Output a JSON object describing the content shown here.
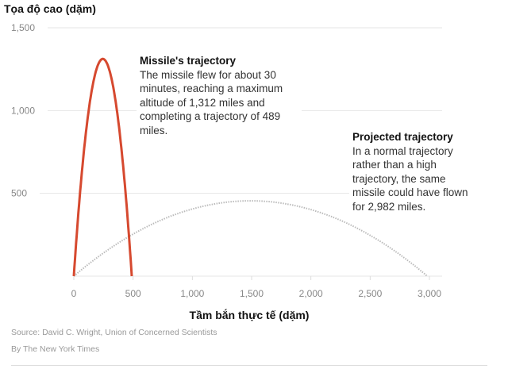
{
  "chart_data": {
    "type": "line",
    "ylabel": "Tọa độ cao (dặm)",
    "xlabel": "Tầm bắn thực tế (dặm)",
    "xlim": [
      0,
      3000
    ],
    "ylim": [
      0,
      1500
    ],
    "xticks": [
      0,
      500,
      1000,
      1500,
      2000,
      2500,
      3000
    ],
    "xtick_labels": [
      "0",
      "500",
      "1,000",
      "1,500",
      "2,000",
      "2,500",
      "3,000"
    ],
    "yticks": [
      500,
      1000,
      1500
    ],
    "ytick_labels": [
      "500",
      "1,000",
      "1,500"
    ],
    "grid": true,
    "series": [
      {
        "name": "Missile's trajectory",
        "range": 489,
        "max_altitude": 1312,
        "color": "#d6492f",
        "style": "solid"
      },
      {
        "name": "Projected trajectory",
        "range": 2982,
        "max_altitude": 455,
        "color": "#bbbbbb",
        "style": "dotted"
      }
    ],
    "annotations": [
      {
        "title": "Missile's trajectory",
        "text": "The missile flew for about 30 minutes, reaching a maximum altitude of 1,312 miles and completing a trajectory of 489 miles."
      },
      {
        "title": "Projected trajectory",
        "text": "In a normal trajectory rather than a high trajectory, the same missile could have flown for 2,982 miles."
      }
    ]
  },
  "footer": {
    "source": "Source: David C. Wright, Union of Concerned Scientists",
    "credit": "By The New York Times"
  }
}
